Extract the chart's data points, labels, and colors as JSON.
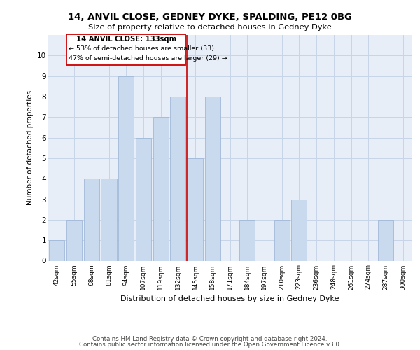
{
  "title": "14, ANVIL CLOSE, GEDNEY DYKE, SPALDING, PE12 0BG",
  "subtitle": "Size of property relative to detached houses in Gedney Dyke",
  "xlabel": "Distribution of detached houses by size in Gedney Dyke",
  "ylabel": "Number of detached properties",
  "footer1": "Contains HM Land Registry data © Crown copyright and database right 2024.",
  "footer2": "Contains public sector information licensed under the Open Government Licence v3.0.",
  "annotation_title": "14 ANVIL CLOSE: 133sqm",
  "annotation_line1": "← 53% of detached houses are smaller (33)",
  "annotation_line2": "47% of semi-detached houses are larger (29) →",
  "bar_labels": [
    "42sqm",
    "55sqm",
    "68sqm",
    "81sqm",
    "94sqm",
    "107sqm",
    "119sqm",
    "132sqm",
    "145sqm",
    "158sqm",
    "171sqm",
    "184sqm",
    "197sqm",
    "210sqm",
    "223sqm",
    "236sqm",
    "248sqm",
    "261sqm",
    "274sqm",
    "287sqm",
    "300sqm"
  ],
  "bar_values": [
    1,
    2,
    4,
    4,
    9,
    6,
    7,
    8,
    5,
    8,
    0,
    2,
    0,
    2,
    3,
    0,
    0,
    0,
    0,
    2,
    0
  ],
  "bar_color": "#c9d9ee",
  "bar_edge_color": "#a0b8d8",
  "grid_color": "#c8d4e8",
  "bg_color": "#e8eef8",
  "ref_line_x": 7.5,
  "ref_line_color": "#cc0000",
  "annotation_box_color": "#cc0000",
  "ylim": [
    0,
    11
  ],
  "yticks": [
    0,
    1,
    2,
    3,
    4,
    5,
    6,
    7,
    8,
    9,
    10
  ]
}
